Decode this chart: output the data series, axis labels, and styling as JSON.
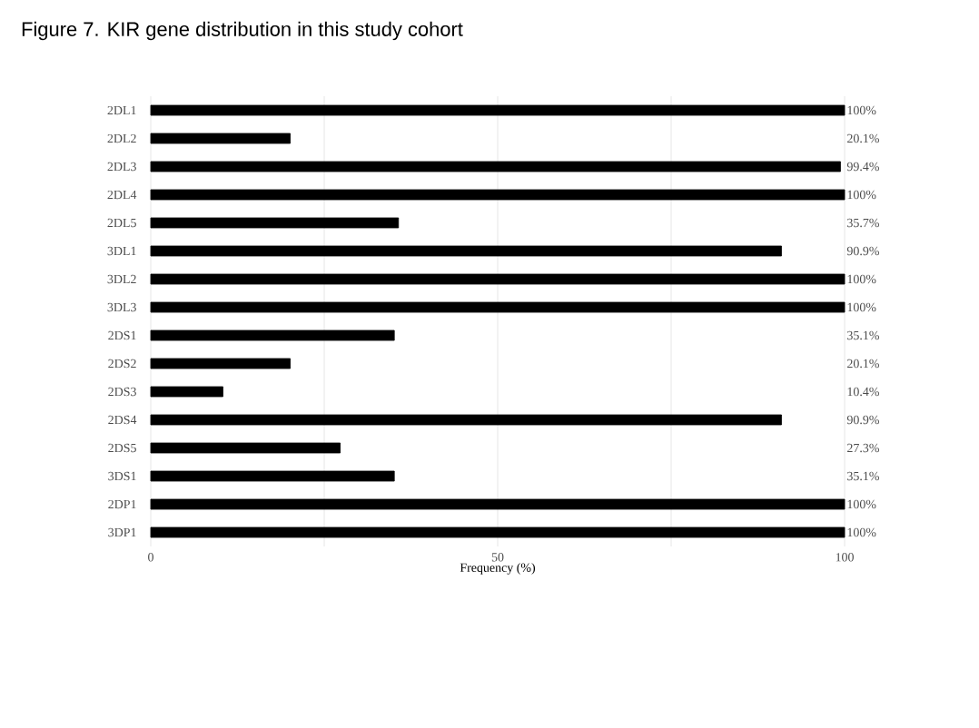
{
  "chart_data": {
    "type": "bar",
    "orientation": "horizontal",
    "title": "Figure 7. KIR gene distribution in this study cohort",
    "xlabel": "Frequency (%)",
    "categories": [
      "2DL1",
      "2DL2",
      "2DL3",
      "2DL4",
      "2DL5",
      "3DL1",
      "3DL2",
      "3DL3",
      "2DS1",
      "2DS2",
      "2DS3",
      "2DS4",
      "2DS5",
      "3DS1",
      "2DP1",
      "3DP1"
    ],
    "values": [
      100,
      20.1,
      99.4,
      100,
      35.7,
      90.9,
      100,
      100,
      35.1,
      20.1,
      10.4,
      90.9,
      27.3,
      35.1,
      100,
      100
    ],
    "value_labels": [
      "100%",
      "20.1%",
      "99.4%",
      "100%",
      "35.7%",
      "90.9%",
      "100%",
      "100%",
      "35.1%",
      "20.1%",
      "10.4%",
      "90.9%",
      "27.3%",
      "35.1%",
      "100%",
      "100%"
    ],
    "color": "#000000",
    "xlim": [
      0,
      100
    ],
    "xticks": [
      0,
      {
        "value": 25,
        "label": null
      },
      50,
      {
        "value": 75,
        "label": null
      },
      100
    ],
    "grid": "x"
  }
}
